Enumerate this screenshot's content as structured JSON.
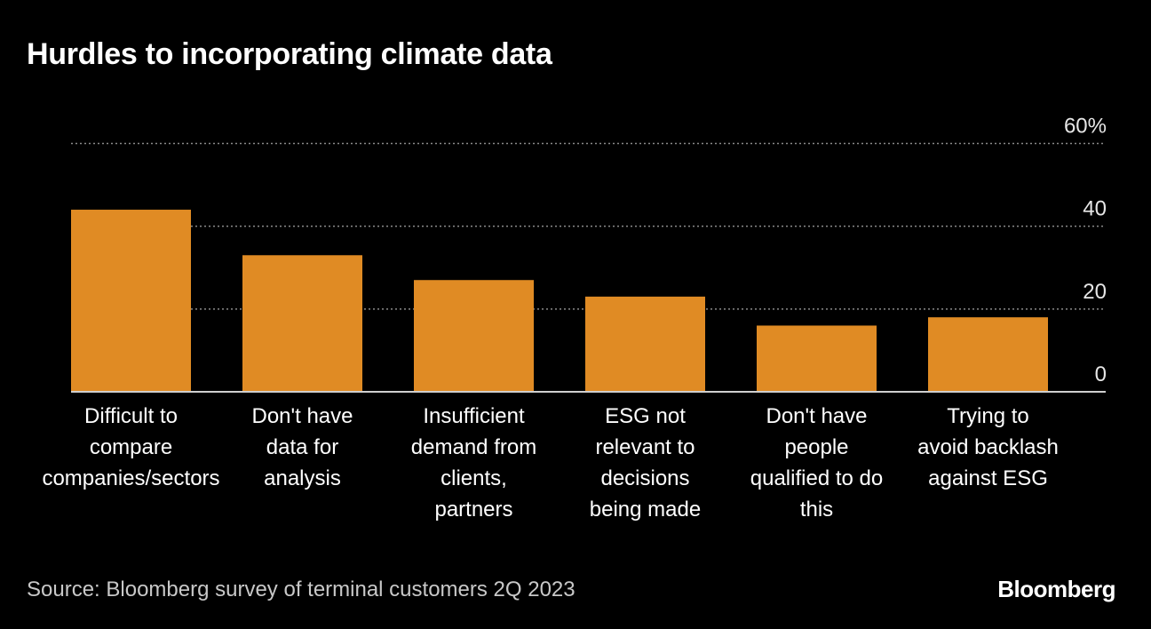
{
  "chart_data": {
    "type": "bar",
    "title": "Hurdles to incorporating climate data",
    "categories": [
      "Difficult to compare companies/sectors",
      "Don't have data for analysis",
      "Insufficient demand from clients, partners",
      "ESG not relevant to decisions being made",
      "Don't have people qualified to do this",
      "Trying to avoid backlash against ESG"
    ],
    "category_lines": [
      [
        "Difficult to",
        "compare",
        "companies/sectors"
      ],
      [
        "Don't have",
        "data for",
        "analysis"
      ],
      [
        "Insufficient",
        "demand from",
        "clients,",
        "partners"
      ],
      [
        "ESG not",
        "relevant to",
        "decisions",
        "being made"
      ],
      [
        "Don't have",
        "people",
        "qualified to do",
        "this"
      ],
      [
        "Trying to",
        "avoid backlash",
        "against ESG"
      ]
    ],
    "values": [
      44,
      33,
      27,
      23,
      16,
      18
    ],
    "unit": "%",
    "ylim": [
      0,
      60
    ],
    "yticks": [
      0,
      20,
      40,
      60
    ],
    "ytick_labels": [
      "0",
      "20",
      "40",
      "60%"
    ],
    "grid": true,
    "bar_color": "#e08b24",
    "source": "Source: Bloomberg survey of terminal customers 2Q 2023",
    "logo": "Bloomberg"
  }
}
